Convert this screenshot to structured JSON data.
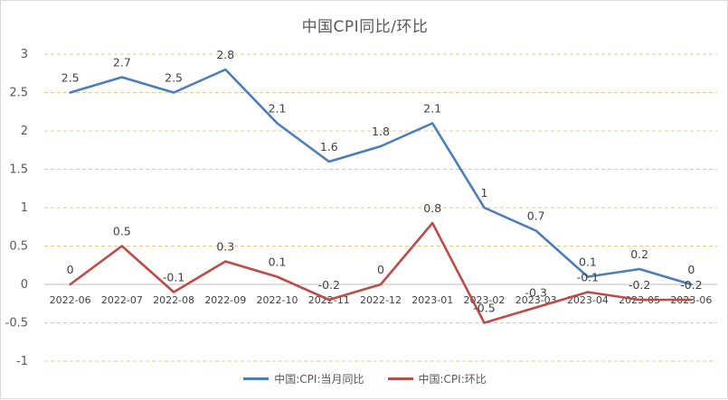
{
  "chart_data": {
    "type": "line",
    "title": "中国CPI同比/环比",
    "categories": [
      "2022-06",
      "2022-07",
      "2022-08",
      "2022-09",
      "2022-10",
      "2022-11",
      "2022-12",
      "2023-01",
      "2023-02",
      "2023-03",
      "2023-04",
      "2023-05",
      "2023-06"
    ],
    "series": [
      {
        "name": "中国:CPI:当月同比",
        "color": "#4a7ebb",
        "values": [
          2.5,
          2.7,
          2.5,
          2.8,
          2.1,
          1.6,
          1.8,
          2.1,
          1,
          0.7,
          0.1,
          0.2,
          0
        ],
        "labels": [
          "2.5",
          "2.7",
          "2.5",
          "2.8",
          "2.1",
          "1.6",
          "1.8",
          "2.1",
          "1",
          "0.7",
          "0.1",
          "0.2",
          "0"
        ]
      },
      {
        "name": "中国:CPI:环比",
        "color": "#be4b48",
        "values": [
          0,
          0.5,
          -0.1,
          0.3,
          0.1,
          -0.2,
          0,
          0.8,
          -0.5,
          -0.3,
          -0.1,
          -0.2,
          -0.2
        ],
        "labels": [
          "0",
          "0.5",
          "-0.1",
          "0.3",
          "0.1",
          "-0.2",
          "0",
          "0.8",
          "-0.5",
          "-0.3",
          "-0.1",
          "-0.2",
          "-0.2"
        ]
      }
    ],
    "yticks": [
      "3",
      "2.5",
      "2",
      "1.5",
      "1",
      "0.5",
      "0",
      "-0.5",
      "-1"
    ],
    "ylim": [
      -1,
      3
    ],
    "grid": true,
    "legend_position": "bottom"
  }
}
